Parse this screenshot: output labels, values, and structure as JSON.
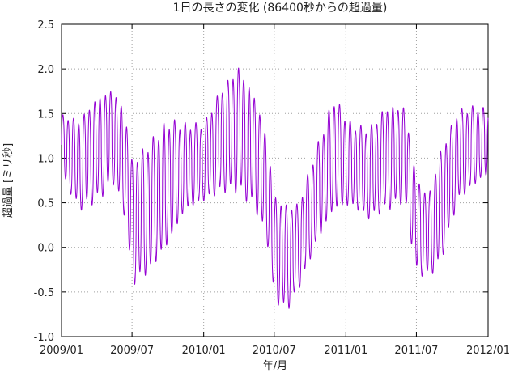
{
  "chart_data": {
    "type": "line",
    "title": "1日の長さの変化 (86400秒からの超過量)",
    "xlabel": "年/月",
    "ylabel": "超過量 [ミリ秒]",
    "x_ticks": [
      "2009/01",
      "2009/07",
      "2010/01",
      "2010/07",
      "2011/01",
      "2011/07",
      "2012/01"
    ],
    "y_ticks": [
      "-1.0",
      "-0.5",
      "0.0",
      "0.5",
      "1.0",
      "1.5",
      "2.0",
      "2.5"
    ],
    "xlim": [
      "2009-01-01",
      "2012-01-01"
    ],
    "ylim": [
      -1.0,
      2.5
    ],
    "grid": true,
    "series_color": "#9400d3",
    "grid_color": "#a0a0a0",
    "envelope": {
      "dates": [
        "2009-01-01",
        "2009-02-15",
        "2009-04-01",
        "2009-05-15",
        "2009-06-15",
        "2009-07-01",
        "2009-08-15",
        "2009-10-01",
        "2009-11-15",
        "2010-01-01",
        "2010-02-15",
        "2010-04-01",
        "2010-05-15",
        "2010-06-15",
        "2010-07-01",
        "2010-08-01",
        "2010-09-01",
        "2010-10-15",
        "2010-12-01",
        "2011-01-15",
        "2011-03-01",
        "2011-04-15",
        "2011-06-01",
        "2011-07-01",
        "2011-08-01",
        "2011-09-01",
        "2011-10-15",
        "2011-12-01",
        "2012-01-01"
      ],
      "upper": [
        1.5,
        1.45,
        1.7,
        1.8,
        1.5,
        1.0,
        1.2,
        1.45,
        1.4,
        1.4,
        1.8,
        2.05,
        1.7,
        1.2,
        0.6,
        0.5,
        0.5,
        1.1,
        1.7,
        1.4,
        1.35,
        1.6,
        1.6,
        0.8,
        0.6,
        1.1,
        1.55,
        1.6,
        1.55
      ],
      "lower": [
        0.8,
        0.4,
        0.5,
        0.7,
        0.3,
        -0.45,
        -0.3,
        0.0,
        0.4,
        0.5,
        0.6,
        0.6,
        0.4,
        0.0,
        -0.6,
        -0.75,
        -0.5,
        0.0,
        0.4,
        0.45,
        0.3,
        0.4,
        0.5,
        -0.3,
        -0.35,
        -0.2,
        0.5,
        0.7,
        0.8
      ]
    }
  }
}
